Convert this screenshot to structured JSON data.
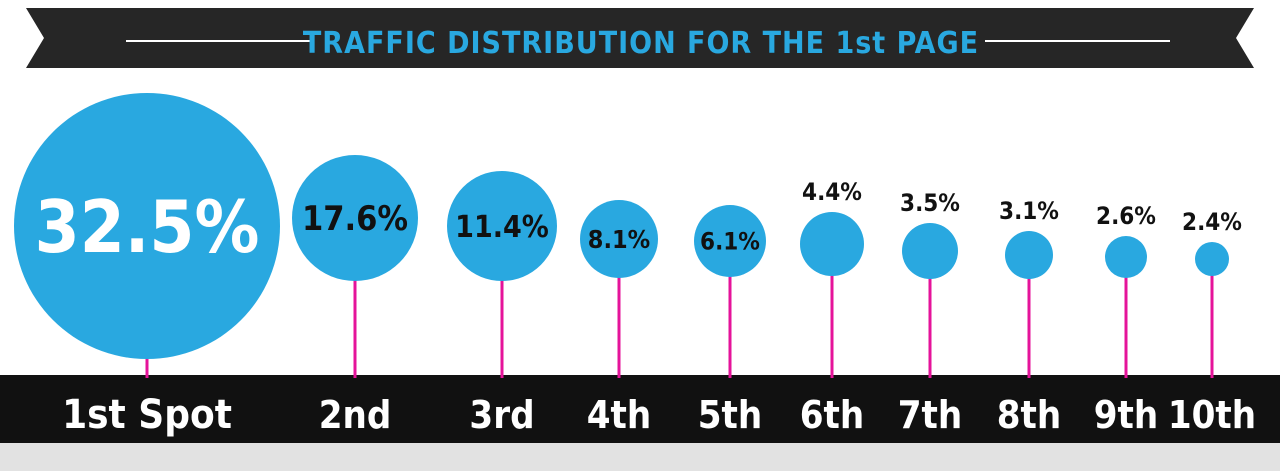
{
  "colors": {
    "ribbon": "#262626",
    "ribbon_text": "#29a8e0",
    "bubble": "#29a8e0",
    "stem": "#e5139a",
    "bottom_bar": "#111111",
    "footer_strip": "#e2e2e2",
    "label_dark": "#111111",
    "label_light": "#ffffff"
  },
  "chart_data": {
    "type": "bubble",
    "title": "TRAFFIC DISTRIBUTION FOR THE 1st PAGE",
    "categories": [
      "1st Spot",
      "2nd",
      "3rd",
      "4th",
      "5th",
      "6th",
      "7th",
      "8th",
      "9th",
      "10th"
    ],
    "values": [
      32.5,
      17.6,
      11.4,
      8.1,
      6.1,
      4.4,
      3.5,
      3.1,
      2.6,
      2.4
    ],
    "labels": [
      "32.5%",
      "17.6%",
      "11.4%",
      "8.1%",
      "6.1%",
      "4.4%",
      "3.5%",
      "3.1%",
      "2.6%",
      "2.4%"
    ],
    "unit": "%"
  }
}
